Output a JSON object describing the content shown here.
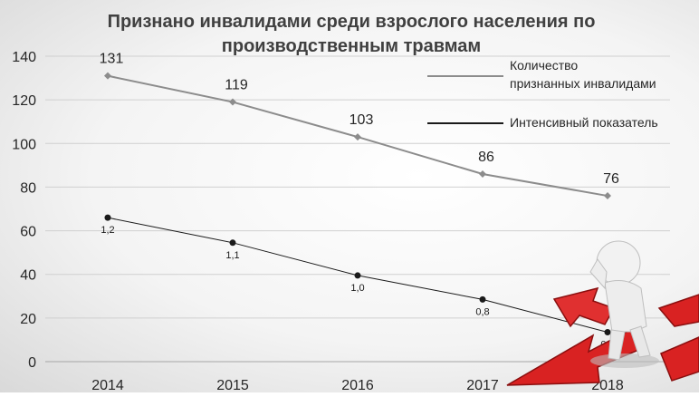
{
  "chart_data": {
    "type": "line",
    "title_line1": "Признано инвалидами среди взрослого населения по",
    "title_line2": "производственным травмам",
    "categories": [
      "2014",
      "2015",
      "2016",
      "2017",
      "2018"
    ],
    "ylim": [
      0,
      140
    ],
    "yticks": [
      0,
      20,
      40,
      60,
      80,
      100,
      120,
      140
    ],
    "grid": true,
    "legend_position": "top-right",
    "series": [
      {
        "name": "Количество признанных инвалидами",
        "name_line1": "Количество",
        "name_line2": "признанных инвалидами",
        "values": [
          131,
          119,
          103,
          86,
          76
        ],
        "labels": [
          "131",
          "119",
          "103",
          "86",
          "76"
        ],
        "color": "#8c8c8c",
        "marker": "diamond"
      },
      {
        "name": "Интенсивный показатель",
        "plot_values": [
          66,
          54.5,
          39.5,
          28.5,
          13.5
        ],
        "labels": [
          "1,2",
          "1,1",
          "1,0",
          "0,8",
          "0,6"
        ],
        "color": "#1a1a1a",
        "marker": "circle"
      }
    ]
  }
}
